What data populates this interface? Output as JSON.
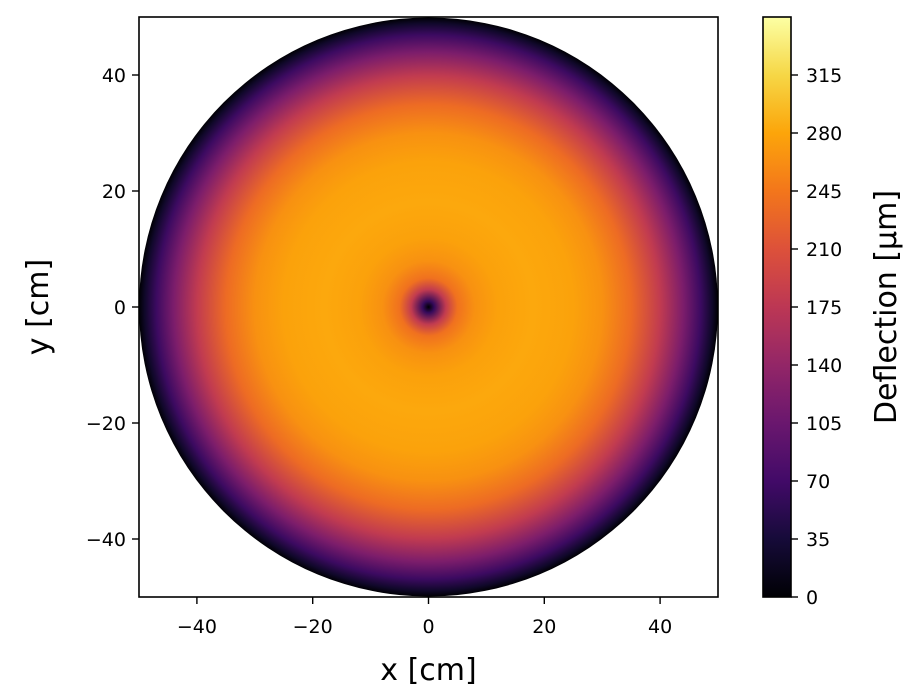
{
  "chart_data": {
    "type": "heatmap",
    "subtype": "radial-deflection-map",
    "xlabel": "x [cm]",
    "ylabel": "y [cm]",
    "xlim": [
      -50,
      50
    ],
    "ylim": [
      -50,
      50
    ],
    "xticks": [
      -40,
      -20,
      0,
      20,
      40
    ],
    "yticks": [
      -40,
      -20,
      0,
      20,
      40
    ],
    "xtick_labels": [
      "−40",
      "−20",
      "0",
      "20",
      "40"
    ],
    "ytick_labels": [
      "−40",
      "−20",
      "0",
      "20",
      "40"
    ],
    "plate_radius": 50,
    "colormap": "inferno",
    "radial_profile": {
      "r": [
        0,
        1,
        3,
        5,
        8,
        12,
        18,
        25,
        30,
        35,
        40,
        44,
        47,
        49,
        50
      ],
      "deflection": [
        0,
        60,
        180,
        240,
        265,
        277,
        282,
        278,
        265,
        235,
        180,
        120,
        65,
        25,
        0
      ]
    },
    "colorbar": {
      "label": "Deflection [μm]",
      "range": [
        0,
        350
      ],
      "ticks": [
        0,
        35,
        70,
        105,
        140,
        175,
        210,
        245,
        280,
        315
      ],
      "tick_labels": [
        "0",
        "35",
        "70",
        "105",
        "140",
        "175",
        "210",
        "245",
        "280",
        "315"
      ]
    },
    "grid": false
  }
}
